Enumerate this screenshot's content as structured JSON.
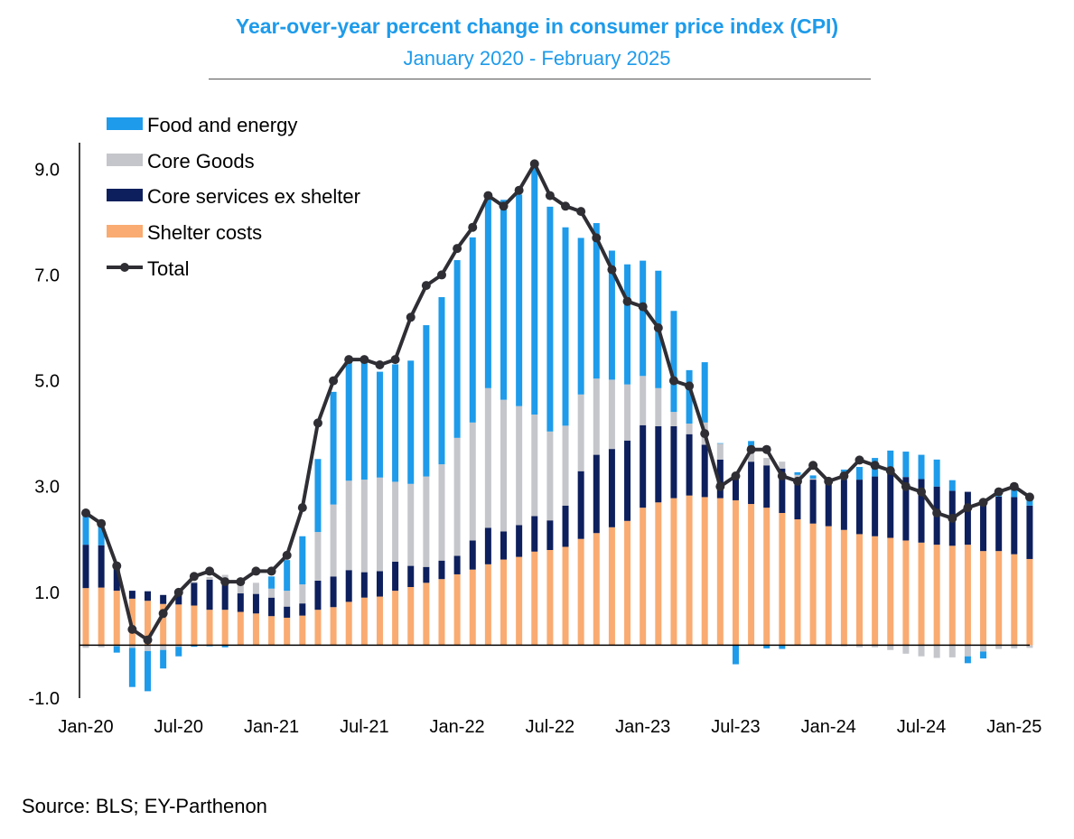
{
  "header": {
    "title": "Year-over-year percent change in consumer price index (CPI)",
    "subtitle": "January 2020 - February 2025"
  },
  "source": "Source: BLS; EY-Parthenon",
  "colors": {
    "food_energy": "#1e9bea",
    "core_goods": "#c5c6cb",
    "core_services_ex_shelter": "#0d1f5c",
    "shelter": "#f9ab71",
    "total": "#2e2e34"
  },
  "chart_data": {
    "type": "bar",
    "stacked": true,
    "title": "Year-over-year percent change in consumer price index (CPI)",
    "subtitle": "January 2020 - February 2025",
    "ylim": [
      -1.0,
      9.5
    ],
    "y_ticks": [
      "9.0",
      "7.0",
      "5.0",
      "3.0",
      "1.0",
      "-1.0"
    ],
    "y_tick_values": [
      9.0,
      7.0,
      5.0,
      3.0,
      1.0,
      -1.0
    ],
    "x_tick_labels": [
      "Jan-20",
      "Jul-20",
      "Jan-21",
      "Jul-21",
      "Jan-22",
      "Jul-22",
      "Jan-23",
      "Jul-23",
      "Jan-24",
      "Jul-24",
      "Jan-25"
    ],
    "x_tick_index": [
      0,
      6,
      12,
      18,
      24,
      30,
      36,
      42,
      48,
      54,
      60
    ],
    "legend_position": "top-left",
    "grid": false,
    "categories": [
      "Jan-20",
      "Feb-20",
      "Mar-20",
      "Apr-20",
      "May-20",
      "Jun-20",
      "Jul-20",
      "Aug-20",
      "Sep-20",
      "Oct-20",
      "Nov-20",
      "Dec-20",
      "Jan-21",
      "Feb-21",
      "Mar-21",
      "Apr-21",
      "May-21",
      "Jun-21",
      "Jul-21",
      "Aug-21",
      "Sep-21",
      "Oct-21",
      "Nov-21",
      "Dec-21",
      "Jan-22",
      "Feb-22",
      "Mar-22",
      "Apr-22",
      "May-22",
      "Jun-22",
      "Jul-22",
      "Aug-22",
      "Sep-22",
      "Oct-22",
      "Nov-22",
      "Dec-22",
      "Jan-23",
      "Feb-23",
      "Mar-23",
      "Apr-23",
      "May-23",
      "Jun-23",
      "Jul-23",
      "Aug-23",
      "Sep-23",
      "Oct-23",
      "Nov-23",
      "Dec-23",
      "Jan-24",
      "Feb-24",
      "Mar-24",
      "Apr-24",
      "May-24",
      "Jun-24",
      "Jul-24",
      "Aug-24",
      "Sep-24",
      "Oct-24",
      "Nov-24",
      "Dec-24",
      "Jan-25",
      "Feb-25"
    ],
    "series": [
      {
        "name": "Shelter costs",
        "key": "shelter",
        "values": [
          1.08,
          1.09,
          1.03,
          0.88,
          0.84,
          0.78,
          0.77,
          0.75,
          0.67,
          0.67,
          0.63,
          0.6,
          0.55,
          0.52,
          0.56,
          0.67,
          0.72,
          0.82,
          0.9,
          0.92,
          1.03,
          1.1,
          1.18,
          1.25,
          1.34,
          1.43,
          1.53,
          1.62,
          1.67,
          1.77,
          1.8,
          1.86,
          2.01,
          2.12,
          2.23,
          2.35,
          2.6,
          2.7,
          2.78,
          2.83,
          2.8,
          2.78,
          2.74,
          2.67,
          2.6,
          2.5,
          2.38,
          2.3,
          2.25,
          2.18,
          2.1,
          2.06,
          2.03,
          1.98,
          1.94,
          1.9,
          1.88,
          1.9,
          1.78,
          1.78,
          1.72,
          1.63
        ]
      },
      {
        "name": "Core services ex shelter",
        "key": "core_services",
        "values": [
          0.82,
          0.8,
          0.47,
          0.15,
          0.18,
          0.17,
          0.18,
          0.43,
          0.57,
          0.58,
          0.35,
          0.37,
          0.35,
          0.21,
          0.23,
          0.55,
          0.58,
          0.6,
          0.48,
          0.48,
          0.55,
          0.4,
          0.3,
          0.35,
          0.35,
          0.55,
          0.69,
          0.53,
          0.6,
          0.67,
          0.56,
          0.78,
          1.28,
          1.48,
          1.48,
          1.52,
          1.56,
          1.44,
          1.36,
          1.16,
          0.99,
          0.73,
          0.4,
          0.8,
          0.8,
          0.84,
          0.78,
          0.83,
          0.84,
          0.95,
          1.03,
          1.13,
          1.22,
          1.2,
          1.2,
          1.1,
          1.04,
          1.0,
          0.98,
          1.03,
          1.08,
          1.01
        ]
      },
      {
        "name": "Core Goods",
        "key": "core_goods",
        "values": [
          -0.05,
          -0.04,
          -0.02,
          -0.05,
          -0.11,
          -0.09,
          -0.03,
          0.02,
          0.05,
          0.08,
          0.23,
          0.21,
          0.17,
          0.3,
          0.36,
          0.92,
          1.36,
          1.69,
          1.75,
          1.77,
          1.51,
          1.55,
          1.71,
          1.82,
          2.23,
          2.23,
          2.64,
          2.49,
          2.25,
          1.92,
          1.68,
          1.51,
          1.45,
          1.44,
          1.31,
          1.06,
          0.93,
          0.72,
          0.27,
          0.2,
          0.42,
          0.3,
          0.09,
          0.28,
          0.14,
          0.13,
          0.06,
          0.02,
          0.0,
          -0.02,
          -0.04,
          -0.04,
          -0.09,
          -0.16,
          -0.21,
          -0.24,
          -0.23,
          -0.21,
          -0.12,
          -0.07,
          -0.06,
          -0.05
        ]
      },
      {
        "name": "Food and energy",
        "key": "food_energy",
        "values": [
          0.65,
          0.45,
          -0.12,
          -0.74,
          -0.76,
          -0.35,
          -0.18,
          -0.03,
          -0.02,
          -0.04,
          -0.01,
          0.0,
          0.23,
          0.58,
          0.91,
          1.38,
          2.13,
          2.27,
          2.23,
          2.0,
          2.22,
          2.33,
          2.86,
          3.16,
          3.36,
          3.5,
          3.63,
          3.78,
          4.0,
          4.74,
          4.25,
          3.75,
          2.96,
          2.94,
          2.44,
          2.27,
          2.18,
          2.22,
          1.91,
          1.01,
          1.14,
          0.01,
          -0.36,
          0.11,
          -0.06,
          -0.07,
          0.05,
          0.06,
          0.07,
          0.19,
          0.24,
          0.35,
          0.43,
          0.48,
          0.46,
          0.51,
          0.2,
          -0.13,
          -0.13,
          0.1,
          0.15,
          0.11
        ]
      }
    ],
    "total": {
      "name": "Total",
      "values": [
        2.5,
        2.3,
        1.5,
        0.3,
        0.1,
        0.6,
        1.0,
        1.3,
        1.4,
        1.2,
        1.2,
        1.4,
        1.4,
        1.7,
        2.6,
        4.2,
        5.0,
        5.4,
        5.4,
        5.3,
        5.4,
        6.2,
        6.8,
        7.0,
        7.5,
        7.9,
        8.5,
        8.3,
        8.6,
        9.1,
        8.5,
        8.3,
        8.2,
        7.7,
        7.1,
        6.5,
        6.4,
        6.0,
        5.0,
        4.9,
        4.0,
        3.0,
        3.2,
        3.7,
        3.7,
        3.2,
        3.1,
        3.4,
        3.1,
        3.2,
        3.5,
        3.4,
        3.3,
        3.0,
        2.9,
        2.5,
        2.4,
        2.6,
        2.7,
        2.9,
        3.0,
        2.8
      ]
    }
  }
}
